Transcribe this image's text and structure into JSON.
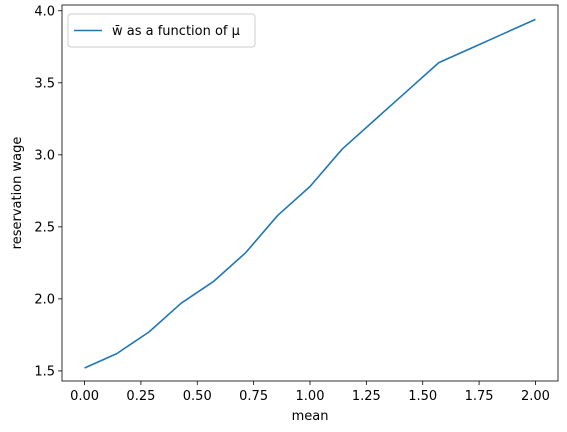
{
  "chart_data": {
    "type": "line",
    "xlabel": "mean",
    "ylabel": "reservation wage",
    "xlim": [
      -0.1,
      2.1
    ],
    "ylim": [
      1.43,
      4.04
    ],
    "xticks": [
      0.0,
      0.25,
      0.5,
      0.75,
      1.0,
      1.25,
      1.5,
      1.75,
      2.0
    ],
    "xtick_labels": [
      "0.00",
      "0.25",
      "0.50",
      "0.75",
      "1.00",
      "1.25",
      "1.50",
      "1.75",
      "2.00"
    ],
    "yticks": [
      1.5,
      2.0,
      2.5,
      3.0,
      3.5,
      4.0
    ],
    "ytick_labels": [
      "1.5",
      "2.0",
      "2.5",
      "3.0",
      "3.5",
      "4.0"
    ],
    "grid": false,
    "legend_position": "upper-left",
    "series": [
      {
        "name": "w̄ as a function of μ",
        "color": "#1f77b4",
        "x": [
          0.0,
          0.1429,
          0.2857,
          0.4286,
          0.5714,
          0.7143,
          0.8571,
          1.0,
          1.1429,
          1.2857,
          1.4286,
          1.5714,
          1.7143,
          1.8571,
          2.0
        ],
        "y": [
          1.52,
          1.62,
          1.77,
          1.97,
          2.12,
          2.32,
          2.58,
          2.78,
          3.04,
          3.24,
          3.44,
          3.64,
          3.74,
          3.84,
          3.94
        ]
      }
    ]
  }
}
